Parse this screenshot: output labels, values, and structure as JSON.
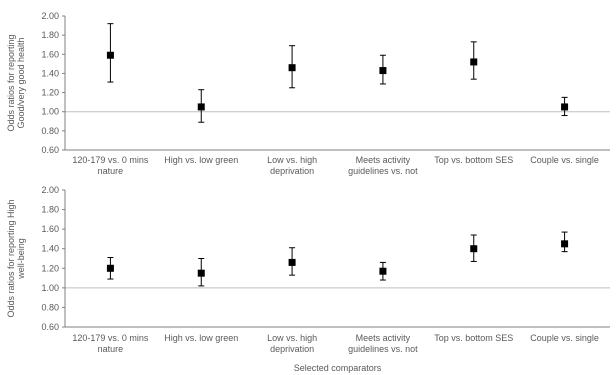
{
  "colors": {
    "axis": "#808080",
    "text": "#595959",
    "marker": "#000000",
    "refline": "#bfbfbf"
  },
  "chart_data": [
    {
      "type": "scatter",
      "error_bars": true,
      "ylabel_lines": [
        "Odds ratios for reporting",
        "Good/very good health"
      ],
      "xlabel": "",
      "ylim": [
        0.6,
        2.0
      ],
      "ytick_values": [
        0.6,
        0.8,
        1.0,
        1.2,
        1.4,
        1.6,
        1.8,
        2.0
      ],
      "ytick_labels": [
        "0.60",
        "0.80",
        "1.00",
        "1.20",
        "1.40",
        "1.60",
        "1.80",
        "2.00"
      ],
      "reference_line": 1.0,
      "grid": false,
      "categories": [
        [
          "120-179 vs. 0 mins",
          "nature"
        ],
        [
          "High vs. low green"
        ],
        [
          "Low vs. high",
          "deprivation"
        ],
        [
          "Meets activity",
          "guidelines vs. not"
        ],
        [
          "Top vs. bottom SES"
        ],
        [
          "Couple vs. single"
        ]
      ],
      "values": [
        1.59,
        1.05,
        1.46,
        1.43,
        1.52,
        1.05
      ],
      "ci_low": [
        1.31,
        0.89,
        1.25,
        1.29,
        1.34,
        0.96
      ],
      "ci_high": [
        1.92,
        1.23,
        1.69,
        1.59,
        1.73,
        1.15
      ]
    },
    {
      "type": "scatter",
      "error_bars": true,
      "ylabel_lines": [
        "Odds ratios for reporting High",
        "well-being"
      ],
      "xlabel": "Selected comparators",
      "ylim": [
        0.6,
        2.0
      ],
      "ytick_values": [
        0.6,
        0.8,
        1.0,
        1.2,
        1.4,
        1.6,
        1.8,
        2.0
      ],
      "ytick_labels": [
        "0.60",
        "0.80",
        "1.00",
        "1.20",
        "1.40",
        "1.60",
        "1.80",
        "2.00"
      ],
      "reference_line": 1.0,
      "grid": false,
      "categories": [
        [
          "120-179 vs. 0 mins",
          "nature"
        ],
        [
          "High vs. low green"
        ],
        [
          "Low vs. high",
          "deprivation"
        ],
        [
          "Meets activity",
          "guidelines vs. not"
        ],
        [
          "Top vs. bottom SES"
        ],
        [
          "Couple vs. single"
        ]
      ],
      "values": [
        1.2,
        1.15,
        1.26,
        1.17,
        1.4,
        1.45
      ],
      "ci_low": [
        1.09,
        1.02,
        1.13,
        1.08,
        1.27,
        1.37
      ],
      "ci_high": [
        1.31,
        1.3,
        1.41,
        1.26,
        1.54,
        1.57
      ]
    }
  ]
}
